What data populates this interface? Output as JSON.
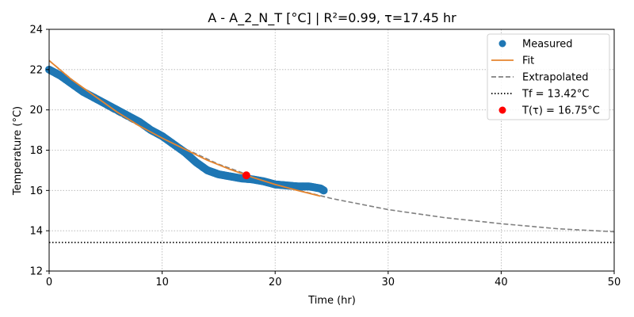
{
  "chart_data": {
    "type": "line",
    "title": "A - A_2_N_T  [°C] | R²=0.99, τ=17.45 hr",
    "xlabel": "Time (hr)",
    "ylabel": "Temperature (°C)",
    "xlim": [
      0,
      50
    ],
    "ylim": [
      12,
      24
    ],
    "x_ticks": [
      0,
      10,
      20,
      30,
      40,
      50
    ],
    "y_ticks": [
      12,
      14,
      16,
      18,
      20,
      22,
      24
    ],
    "grid": true,
    "legend_position": "top-right",
    "colors": {
      "measured": "#1f77b4",
      "fit": "#e6852e",
      "extrapolated": "#808080",
      "tf": "#000000",
      "ttau": "#ff0000"
    },
    "series": [
      {
        "name": "Measured",
        "style": "markers",
        "x": [
          0,
          1,
          2,
          3,
          4,
          5,
          6,
          7,
          8,
          9,
          10,
          11,
          12,
          13,
          14,
          14.5,
          15,
          16,
          17,
          18,
          19,
          20,
          21,
          22,
          23,
          24,
          24.3
        ],
        "y": [
          22.0,
          21.7,
          21.3,
          20.9,
          20.6,
          20.3,
          20.0,
          19.7,
          19.4,
          19.0,
          18.7,
          18.3,
          17.9,
          17.4,
          17.0,
          16.9,
          16.8,
          16.7,
          16.6,
          16.55,
          16.45,
          16.3,
          16.25,
          16.2,
          16.2,
          16.1,
          16.0
        ]
      },
      {
        "name": "Fit",
        "style": "solid",
        "x": [
          0,
          2,
          4,
          6,
          8,
          10,
          12,
          14,
          16,
          18,
          20,
          22,
          24
        ],
        "y": [
          22.45,
          21.5,
          20.7,
          19.9,
          19.2,
          18.6,
          18.05,
          17.5,
          17.05,
          16.65,
          16.3,
          16.0,
          15.72
        ]
      },
      {
        "name": "Extrapolated",
        "style": "dashed",
        "x": [
          0,
          5,
          10,
          15,
          20,
          25,
          30,
          35,
          40,
          45,
          50
        ],
        "y": [
          22.45,
          20.1,
          18.6,
          17.3,
          16.3,
          15.6,
          15.05,
          14.65,
          14.35,
          14.1,
          13.95
        ]
      },
      {
        "name": "Tf = 13.42°C",
        "style": "dotted",
        "x": [
          0,
          50
        ],
        "y": [
          13.42,
          13.42
        ]
      },
      {
        "name": "T(τ) = 16.75°C",
        "style": "point",
        "x": [
          17.45
        ],
        "y": [
          16.75
        ]
      }
    ]
  }
}
